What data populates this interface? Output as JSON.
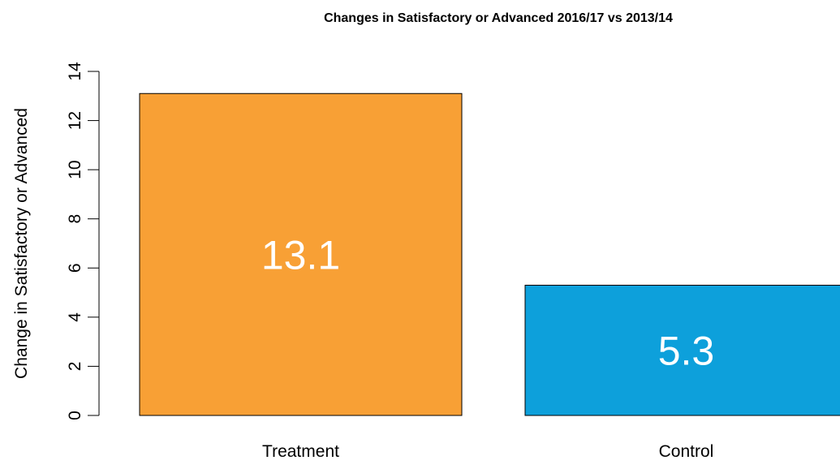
{
  "chart_data": {
    "type": "bar",
    "title": "Changes in Satisfactory or Advanced 2016/17 vs 2013/14",
    "xlabel": "",
    "ylabel": "Change in Satisfactory or Advanced",
    "categories": [
      "Treatment",
      "Control"
    ],
    "values": [
      13.1,
      5.3
    ],
    "data_labels": [
      "13.1",
      "5.3"
    ],
    "colors": [
      "#F8A035",
      "#0DA0DB"
    ],
    "ylim": [
      0,
      14
    ],
    "yticks": [
      0,
      2,
      4,
      6,
      8,
      10,
      12,
      14
    ],
    "ytick_labels": [
      "0",
      "2",
      "4",
      "6",
      "8",
      "10",
      "12",
      "14"
    ],
    "grid": false,
    "legend": "none"
  }
}
